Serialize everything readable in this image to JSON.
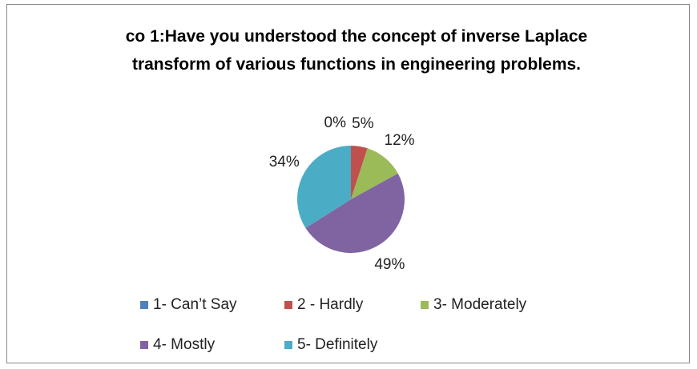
{
  "chart_data": {
    "type": "pie",
    "title": "co 1:Have you understood the concept of inverse Laplace transform of various functions in engineering problems.",
    "categories": [
      "1- Can’t Say",
      "2 - Hardly",
      "3- Moderately",
      "4- Mostly",
      "5- Definitely"
    ],
    "values": [
      0,
      5,
      12,
      49,
      34
    ],
    "value_labels": [
      "0%",
      "5%",
      "12%",
      "49%",
      "34%"
    ],
    "colors": [
      "#4f81bd",
      "#c0504d",
      "#9bbb59",
      "#8064a2",
      "#4bacc6"
    ],
    "legend": "bottom"
  }
}
